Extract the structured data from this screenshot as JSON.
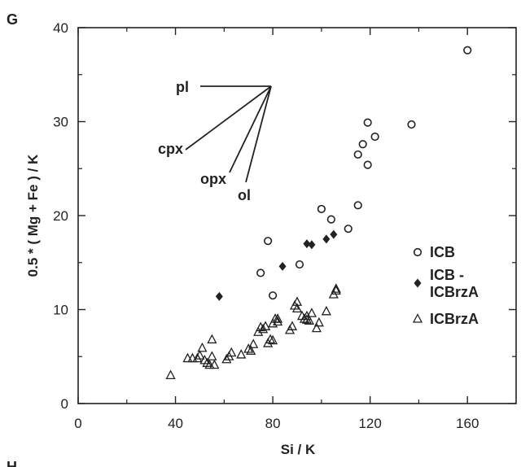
{
  "panel_label": "G",
  "next_panel_label": "H",
  "chart_data": {
    "type": "scatter",
    "xlabel": "Si / K",
    "ylabel": "0.5 * ( Mg + Fe ) / K",
    "xlim": [
      0,
      180
    ],
    "ylim": [
      0,
      40
    ],
    "xticks": [
      0,
      40,
      80,
      120,
      160
    ],
    "yticks": [
      0,
      10,
      20,
      30,
      40
    ],
    "legend_position": "right",
    "vector_labels": [
      "pl",
      "cpx",
      "opx",
      "ol"
    ],
    "series": [
      {
        "name": "ICB",
        "marker": "open-circle",
        "points": [
          [
            160,
            37.6
          ],
          [
            137,
            29.7
          ],
          [
            119,
            29.9
          ],
          [
            122,
            28.4
          ],
          [
            117,
            27.6
          ],
          [
            115,
            26.5
          ],
          [
            119,
            25.4
          ],
          [
            115,
            21.1
          ],
          [
            100,
            20.7
          ],
          [
            104,
            19.6
          ],
          [
            111,
            18.6
          ],
          [
            78,
            17.3
          ],
          [
            75,
            13.9
          ],
          [
            91,
            14.8
          ],
          [
            80,
            11.5
          ]
        ]
      },
      {
        "name": "ICB -\nICBrzA",
        "marker": "filled-diamond",
        "points": [
          [
            58,
            11.4
          ],
          [
            84,
            14.6
          ],
          [
            94,
            17.0
          ],
          [
            96,
            16.9
          ],
          [
            102,
            17.5
          ],
          [
            105,
            18.0
          ]
        ]
      },
      {
        "name": "ICBrzA",
        "marker": "open-triangle",
        "points": [
          [
            38,
            3.0
          ],
          [
            45,
            4.8
          ],
          [
            47,
            4.8
          ],
          [
            49,
            4.8
          ],
          [
            50,
            5.1
          ],
          [
            51,
            5.9
          ],
          [
            52,
            4.6
          ],
          [
            53,
            4.3
          ],
          [
            54,
            4.1
          ],
          [
            55,
            5.0
          ],
          [
            55,
            6.8
          ],
          [
            56,
            4.1
          ],
          [
            61,
            4.7
          ],
          [
            62,
            5.0
          ],
          [
            63,
            5.4
          ],
          [
            67,
            5.2
          ],
          [
            70,
            5.8
          ],
          [
            71,
            5.6
          ],
          [
            72,
            6.3
          ],
          [
            74,
            7.6
          ],
          [
            75,
            8.1
          ],
          [
            76,
            7.9
          ],
          [
            77,
            8.2
          ],
          [
            78,
            6.4
          ],
          [
            79,
            6.8
          ],
          [
            80,
            6.7
          ],
          [
            80,
            8.5
          ],
          [
            81,
            9.0
          ],
          [
            82,
            9.0
          ],
          [
            82,
            8.7
          ],
          [
            87,
            7.8
          ],
          [
            88,
            8.2
          ],
          [
            89,
            10.4
          ],
          [
            90,
            10.1
          ],
          [
            90,
            10.8
          ],
          [
            92,
            9.3
          ],
          [
            93,
            9.0
          ],
          [
            94,
            8.9
          ],
          [
            94,
            9.3
          ],
          [
            95,
            8.8
          ],
          [
            96,
            9.6
          ],
          [
            98,
            8.0
          ],
          [
            99,
            8.6
          ],
          [
            102,
            9.8
          ],
          [
            105,
            11.6
          ],
          [
            106,
            12.2
          ],
          [
            106,
            12.0
          ]
        ]
      }
    ]
  }
}
